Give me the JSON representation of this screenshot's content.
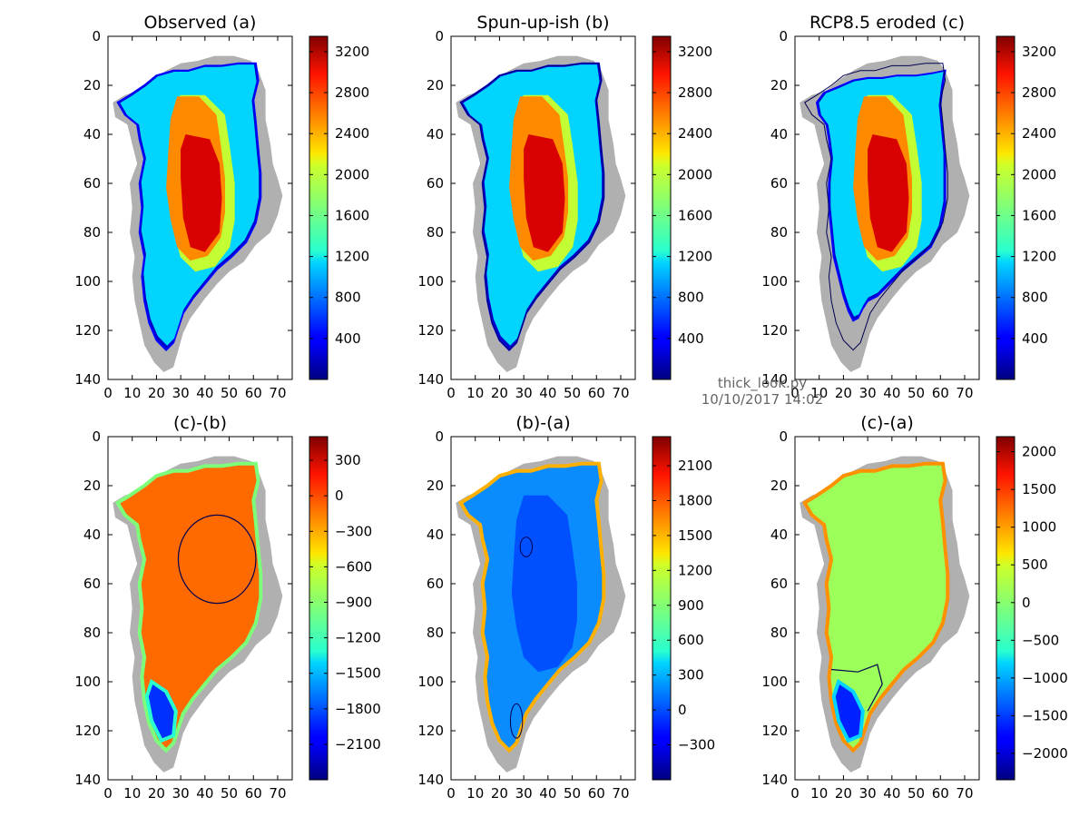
{
  "figure_note": {
    "script": "thick_look.py",
    "timestamp": "10/10/2017 14:02"
  },
  "chart_data": [
    {
      "type": "heatmap",
      "title": "Observed (a)",
      "xlabel": "",
      "ylabel": "",
      "xlim": [
        0,
        76
      ],
      "ylim": [
        140,
        0
      ],
      "xticks": [
        0,
        10,
        20,
        30,
        40,
        50,
        60,
        70
      ],
      "yticks": [
        0,
        20,
        40,
        60,
        80,
        100,
        120,
        140
      ],
      "colorbar": {
        "colormap": "jet",
        "range": [
          0,
          3350
        ],
        "ticks": [
          400,
          800,
          1200,
          1600,
          2000,
          2400,
          2800,
          3200
        ]
      },
      "mask_color": "#b0b0b0",
      "contour": "none"
    },
    {
      "type": "heatmap",
      "title": "Spun-up-ish (b)",
      "xlabel": "",
      "ylabel": "",
      "xlim": [
        0,
        76
      ],
      "ylim": [
        140,
        0
      ],
      "xticks": [
        0,
        10,
        20,
        30,
        40,
        50,
        60,
        70
      ],
      "yticks": [
        0,
        20,
        40,
        60,
        80,
        100,
        120,
        140
      ],
      "colorbar": {
        "colormap": "jet",
        "range": [
          0,
          3350
        ],
        "ticks": [
          400,
          800,
          1200,
          1600,
          2000,
          2400,
          2800,
          3200
        ]
      },
      "mask_color": "#b0b0b0",
      "contour": "ice margin"
    },
    {
      "type": "heatmap",
      "title": "RCP8.5 eroded (c)",
      "xlabel": "",
      "ylabel": "",
      "xlim": [
        0,
        76
      ],
      "ylim": [
        140,
        0
      ],
      "xticks": [
        0,
        10,
        20,
        30,
        40,
        50,
        60,
        70
      ],
      "yticks": [
        0,
        20,
        40,
        60,
        80,
        100,
        120,
        140
      ],
      "colorbar": {
        "colormap": "jet",
        "range": [
          0,
          3350
        ],
        "ticks": [
          400,
          800,
          1200,
          1600,
          2000,
          2400,
          2800,
          3200
        ]
      },
      "mask_color": "#b0b0b0",
      "contour": "ice margin"
    },
    {
      "type": "heatmap",
      "title": "(c)-(b)",
      "xlabel": "",
      "ylabel": "",
      "xlim": [
        0,
        76
      ],
      "ylim": [
        140,
        0
      ],
      "xticks": [
        0,
        10,
        20,
        30,
        40,
        50,
        60,
        70
      ],
      "yticks": [
        0,
        20,
        40,
        60,
        80,
        100,
        120,
        140
      ],
      "colorbar": {
        "colormap": "jet",
        "range": [
          -2400,
          500
        ],
        "ticks": [
          -2100,
          -1800,
          -1500,
          -1200,
          -900,
          -600,
          -300,
          0,
          300
        ]
      },
      "mask_color": "#b0b0b0",
      "contour": "zero"
    },
    {
      "type": "heatmap",
      "title": "(b)-(a)",
      "xlabel": "",
      "ylabel": "",
      "xlim": [
        0,
        76
      ],
      "ylim": [
        140,
        0
      ],
      "xticks": [
        0,
        10,
        20,
        30,
        40,
        50,
        60,
        70
      ],
      "yticks": [
        0,
        20,
        40,
        60,
        80,
        100,
        120,
        140
      ],
      "colorbar": {
        "colormap": "jet",
        "range": [
          -600,
          2350
        ],
        "ticks": [
          -300,
          0,
          300,
          600,
          900,
          1200,
          1500,
          1800,
          2100
        ]
      },
      "mask_color": "#b0b0b0",
      "contour": "zero"
    },
    {
      "type": "heatmap",
      "title": "(c)-(a)",
      "xlabel": "",
      "ylabel": "",
      "xlim": [
        0,
        76
      ],
      "ylim": [
        140,
        0
      ],
      "xticks": [
        0,
        10,
        20,
        30,
        40,
        50,
        60,
        70
      ],
      "yticks": [
        0,
        20,
        40,
        60,
        80,
        100,
        120,
        140
      ],
      "colorbar": {
        "colormap": "jet",
        "range": [
          -2350,
          2200
        ],
        "ticks": [
          -2000,
          -1500,
          -1000,
          -500,
          0,
          500,
          1000,
          1500,
          2000
        ]
      },
      "mask_color": "#b0b0b0",
      "contour": "zero"
    }
  ]
}
